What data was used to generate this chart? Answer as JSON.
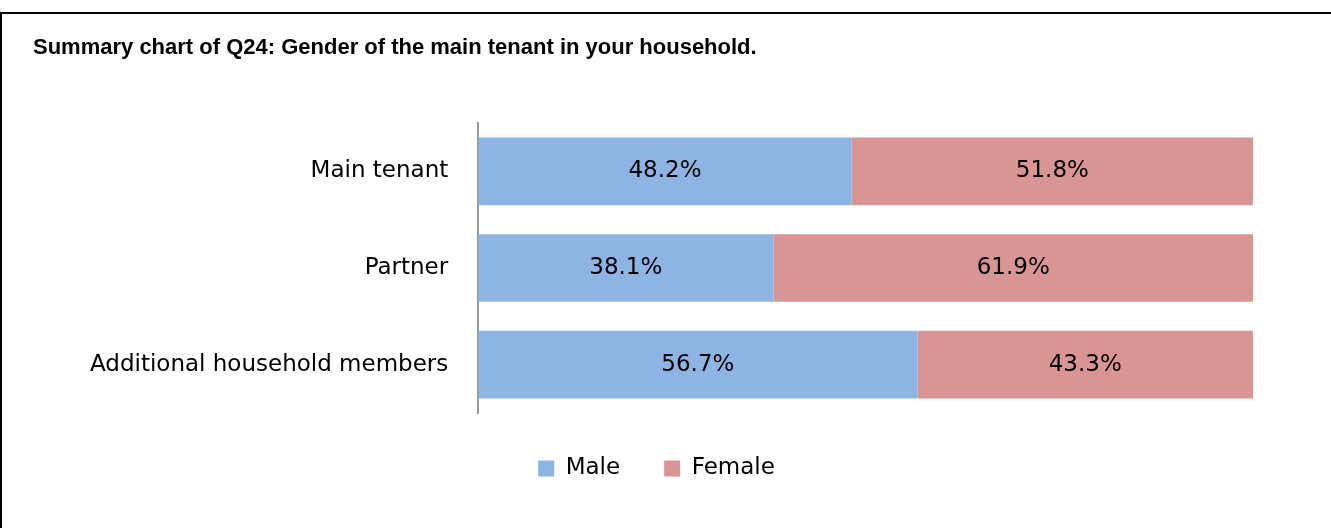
{
  "chart_data": {
    "type": "bar",
    "title": "Summary chart of Q24: Gender of the main tenant in your household.",
    "orientation": "horizontal",
    "stacked": true,
    "legend": "bottom",
    "categories": [
      "Main tenant",
      "Partner",
      "Additional household members"
    ],
    "series": [
      {
        "name": "Male",
        "color": "#8eb4e3",
        "values": [
          48.2,
          38.1,
          56.7
        ],
        "value_labels": [
          "48.2%",
          "38.1%",
          "56.7%"
        ]
      },
      {
        "name": "Female",
        "color": "#d99594",
        "values": [
          51.8,
          61.9,
          43.3
        ],
        "value_labels": [
          "51.8%",
          "61.9%",
          "43.3%"
        ]
      }
    ]
  }
}
